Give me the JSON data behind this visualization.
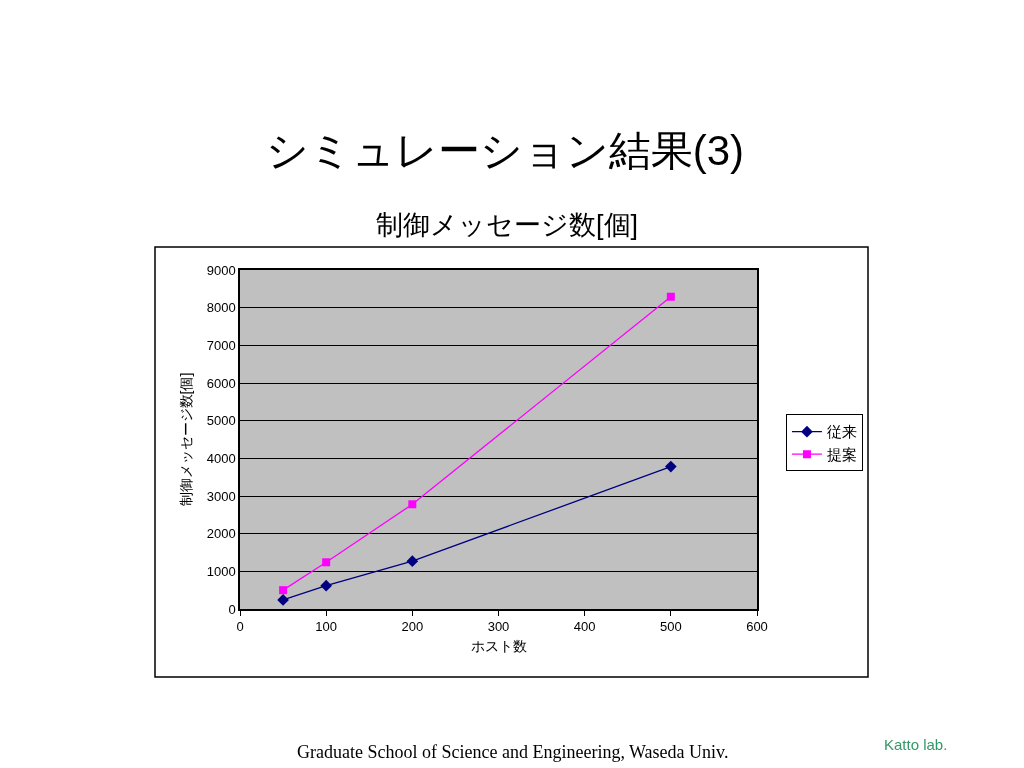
{
  "chart_data": {
    "type": "line",
    "title": "シミュレーション結果(3)",
    "subtitle": "制御メッセージ数[個]",
    "xlabel": "ホスト数",
    "ylabel": "制御メッセージ数[個]",
    "x": [
      50,
      100,
      200,
      500
    ],
    "series": [
      {
        "name": "従来",
        "color": "#000080",
        "marker": "diamond",
        "values": [
          240,
          620,
          1270,
          3780
        ]
      },
      {
        "name": "提案",
        "color": "#ff00ff",
        "marker": "square",
        "values": [
          500,
          1240,
          2780,
          8290
        ]
      }
    ],
    "xlim": [
      0,
      600
    ],
    "xticks": [
      0,
      100,
      200,
      300,
      400,
      500,
      600
    ],
    "ylim": [
      0,
      9000
    ],
    "yticks": [
      0,
      1000,
      2000,
      3000,
      4000,
      5000,
      6000,
      7000,
      8000,
      9000
    ],
    "grid": "y",
    "legend": "right",
    "line_style": "solid",
    "annotations": [
      "Graduate School of Science and Engineering, Waseda Univ.",
      "Katto lab."
    ]
  }
}
